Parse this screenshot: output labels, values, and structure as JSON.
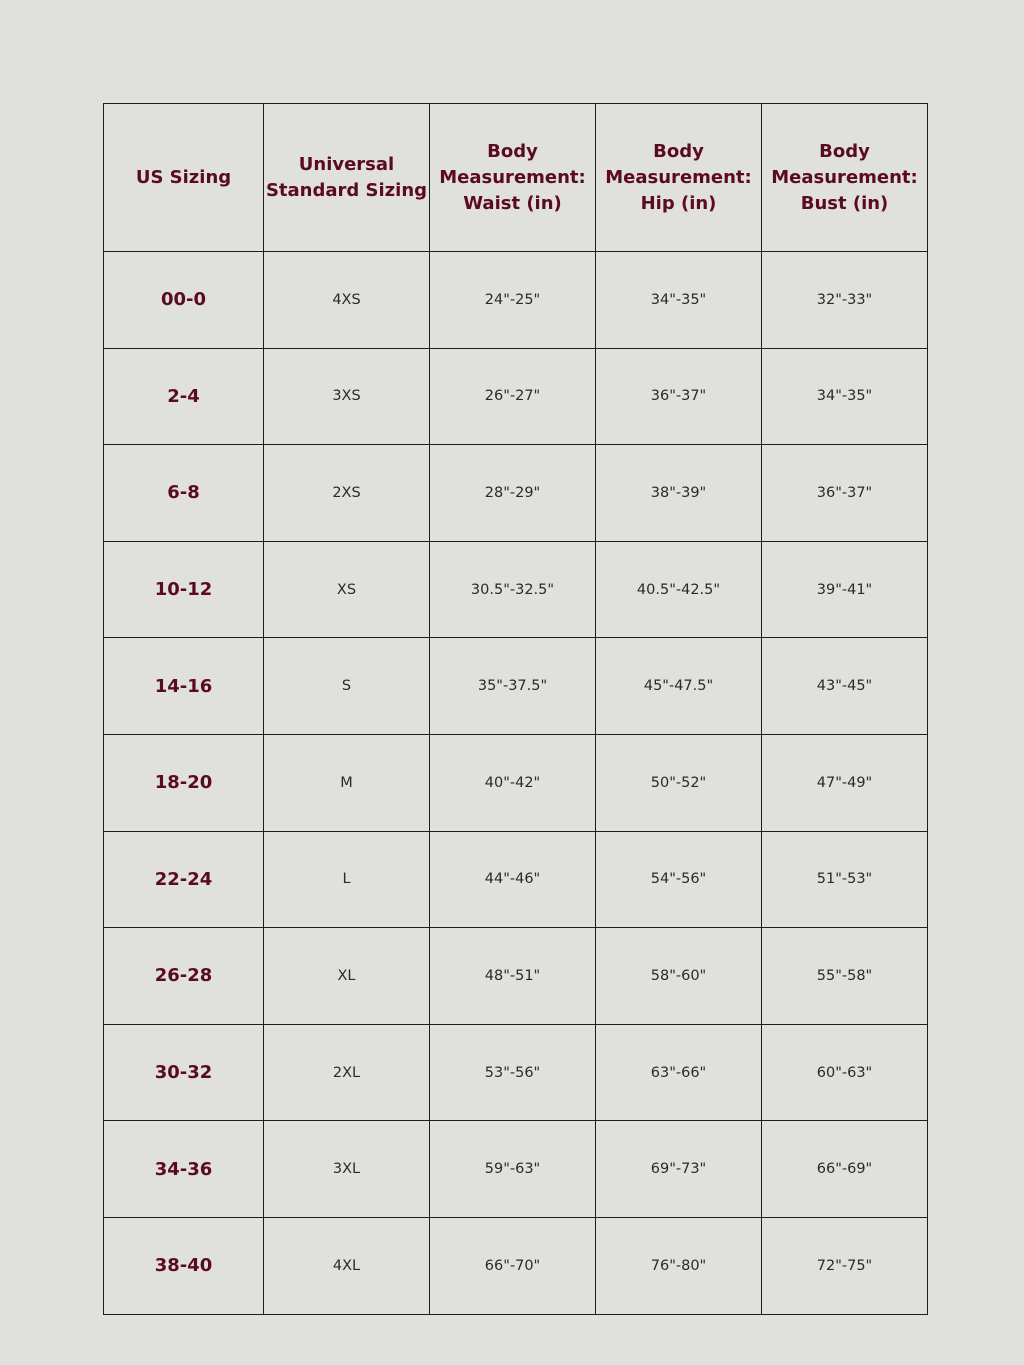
{
  "colors": {
    "background": "#e0e0dc",
    "header_text": "#5a0a24",
    "border": "#1e1e1e"
  },
  "headers": [
    "US Sizing",
    "Universal Standard Sizing",
    "Body Measurement: Waist (in)",
    "Body Measurement: Hip (in)",
    "Body Measurement: Bust (in)"
  ],
  "rows": [
    [
      "00-0",
      "4XS",
      "24\"-25\"",
      "34\"-35\"",
      "32\"-33\""
    ],
    [
      "2-4",
      "3XS",
      "26\"-27\"",
      "36\"-37\"",
      "34\"-35\""
    ],
    [
      "6-8",
      "2XS",
      "28\"-29\"",
      "38\"-39\"",
      "36\"-37\""
    ],
    [
      "10-12",
      "XS",
      "30.5\"-32.5\"",
      "40.5\"-42.5\"",
      "39\"-41\""
    ],
    [
      "14-16",
      "S",
      "35\"-37.5\"",
      "45\"-47.5\"",
      "43\"-45\""
    ],
    [
      "18-20",
      "M",
      "40\"-42\"",
      "50\"-52\"",
      "47\"-49\""
    ],
    [
      "22-24",
      "L",
      "44\"-46\"",
      "54\"-56\"",
      "51\"-53\""
    ],
    [
      "26-28",
      "XL",
      "48\"-51\"",
      "58\"-60\"",
      "55\"-58\""
    ],
    [
      "30-32",
      "2XL",
      "53\"-56\"",
      "63\"-66\"",
      "60\"-63\""
    ],
    [
      "34-36",
      "3XL",
      "59\"-63\"",
      "69\"-73\"",
      "66\"-69\""
    ],
    [
      "38-40",
      "4XL",
      "66\"-70\"",
      "76\"-80\"",
      "72\"-75\""
    ]
  ]
}
